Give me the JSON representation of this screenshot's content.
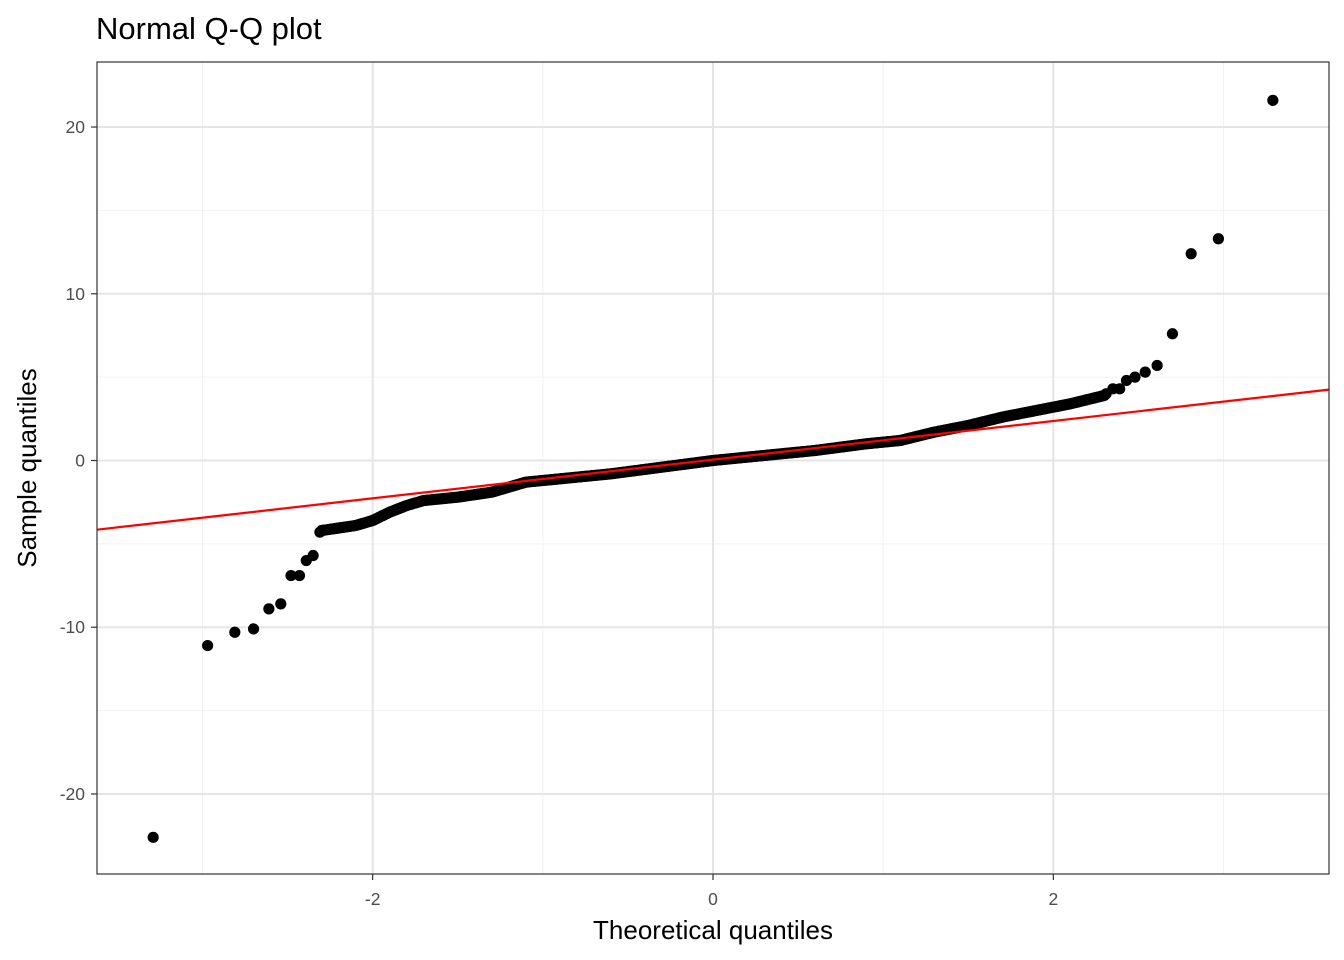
{
  "chart_data": {
    "type": "scatter",
    "title": "Normal Q-Q plot",
    "xlabel": "Theoretical quantiles",
    "ylabel": "Sample quantiles",
    "xlim": [
      -3.62,
      3.62
    ],
    "ylim": [
      -24.8,
      23.9
    ],
    "x_ticks": [
      -2,
      0,
      2
    ],
    "x_tick_labels": [
      "-2",
      "0",
      "2"
    ],
    "y_ticks": [
      -20,
      -10,
      0,
      10,
      20
    ],
    "y_tick_labels": [
      "-20",
      "-10",
      "0",
      "10",
      "20"
    ],
    "x_minor_ticks": [
      -3,
      -1,
      1,
      3
    ],
    "y_minor_ticks": [
      -15,
      -5,
      5,
      15
    ],
    "grid": true,
    "colors": {
      "points": "#000000",
      "reference_line": "#ff0000",
      "grid_major": "#e5e5e5",
      "grid_minor": "#f2f2f2",
      "panel_border": "#333333"
    },
    "reference_line": {
      "slope": 1.16,
      "intercept": 0.05
    },
    "outlier_points": [
      {
        "x": -3.29,
        "y": -22.6
      },
      {
        "x": -2.97,
        "y": -11.1
      },
      {
        "x": -2.81,
        "y": -10.3
      },
      {
        "x": -2.7,
        "y": -10.1
      },
      {
        "x": -2.61,
        "y": -8.9
      },
      {
        "x": -2.54,
        "y": -8.6
      },
      {
        "x": -2.48,
        "y": -6.9
      },
      {
        "x": -2.43,
        "y": -6.9
      },
      {
        "x": -2.39,
        "y": -6.0
      },
      {
        "x": -2.35,
        "y": -5.7
      },
      {
        "x": -2.31,
        "y": -4.3
      },
      {
        "x": 2.31,
        "y": 4.0
      },
      {
        "x": 2.35,
        "y": 4.3
      },
      {
        "x": 2.39,
        "y": 4.3
      },
      {
        "x": 2.43,
        "y": 4.8
      },
      {
        "x": 2.48,
        "y": 5.0
      },
      {
        "x": 2.54,
        "y": 5.3
      },
      {
        "x": 2.61,
        "y": 5.7
      },
      {
        "x": 2.7,
        "y": 7.6
      },
      {
        "x": 2.81,
        "y": 12.4
      },
      {
        "x": 2.97,
        "y": 13.3
      },
      {
        "x": 3.29,
        "y": 21.6
      }
    ],
    "body_curve": [
      {
        "x": -2.3,
        "y": -4.2
      },
      {
        "x": -2.1,
        "y": -3.9
      },
      {
        "x": -2.0,
        "y": -3.6
      },
      {
        "x": -1.9,
        "y": -3.1
      },
      {
        "x": -1.8,
        "y": -2.7
      },
      {
        "x": -1.7,
        "y": -2.4
      },
      {
        "x": -1.5,
        "y": -2.2
      },
      {
        "x": -1.3,
        "y": -1.9
      },
      {
        "x": -1.1,
        "y": -1.3
      },
      {
        "x": -0.9,
        "y": -1.1
      },
      {
        "x": -0.6,
        "y": -0.8
      },
      {
        "x": -0.3,
        "y": -0.4
      },
      {
        "x": 0.0,
        "y": 0.0
      },
      {
        "x": 0.3,
        "y": 0.3
      },
      {
        "x": 0.6,
        "y": 0.6
      },
      {
        "x": 0.9,
        "y": 1.0
      },
      {
        "x": 1.1,
        "y": 1.2
      },
      {
        "x": 1.3,
        "y": 1.7
      },
      {
        "x": 1.5,
        "y": 2.1
      },
      {
        "x": 1.7,
        "y": 2.6
      },
      {
        "x": 1.9,
        "y": 3.0
      },
      {
        "x": 2.1,
        "y": 3.4
      },
      {
        "x": 2.3,
        "y": 3.9
      }
    ],
    "body_point_count": 480
  }
}
